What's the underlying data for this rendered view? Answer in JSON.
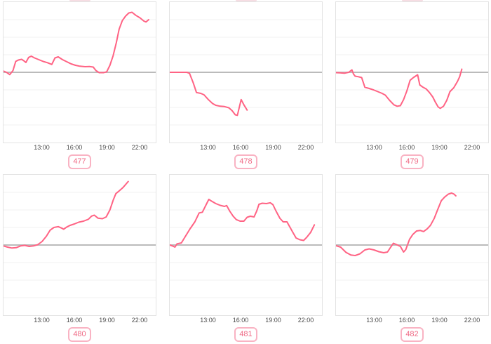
{
  "page": {
    "background": "#ffffff"
  },
  "badge": {
    "border_color": "#f9b3c3",
    "text_color": "#ef6a85"
  },
  "chart_data": {
    "type": "line",
    "title": "",
    "xlabel": "",
    "ylabel": "",
    "x_ticks": [
      "13:00",
      "16:00",
      "19:00",
      "22:00"
    ],
    "x_tick_hours": [
      13,
      16,
      19,
      22
    ],
    "x_domain_hours": [
      9.42,
      23.55
    ],
    "y_domain": [
      -4,
      4
    ],
    "grid": true,
    "zero_baseline": true,
    "legend": "none",
    "line_color": "#ff6384",
    "zero_line_color": "#bbbbbb",
    "grid_color": "#f2f2f2",
    "border_color": "#e3e3e3",
    "charts": [
      {
        "label": "477",
        "points": [
          [
            9.42,
            0.07
          ],
          [
            9.7,
            0.0
          ],
          [
            10.0,
            -0.13
          ],
          [
            10.3,
            0.1
          ],
          [
            10.55,
            0.62
          ],
          [
            10.8,
            0.7
          ],
          [
            11.1,
            0.74
          ],
          [
            11.3,
            0.66
          ],
          [
            11.5,
            0.56
          ],
          [
            11.75,
            0.85
          ],
          [
            12.0,
            0.92
          ],
          [
            12.3,
            0.82
          ],
          [
            12.7,
            0.72
          ],
          [
            13.1,
            0.62
          ],
          [
            13.5,
            0.55
          ],
          [
            13.9,
            0.45
          ],
          [
            14.2,
            0.82
          ],
          [
            14.5,
            0.88
          ],
          [
            14.9,
            0.72
          ],
          [
            15.3,
            0.6
          ],
          [
            15.7,
            0.48
          ],
          [
            16.1,
            0.4
          ],
          [
            16.5,
            0.35
          ],
          [
            17.0,
            0.32
          ],
          [
            17.4,
            0.33
          ],
          [
            17.75,
            0.3
          ],
          [
            18.0,
            0.1
          ],
          [
            18.3,
            -0.02
          ],
          [
            18.7,
            -0.02
          ],
          [
            19.0,
            0.03
          ],
          [
            19.3,
            0.4
          ],
          [
            19.6,
            0.95
          ],
          [
            19.9,
            1.7
          ],
          [
            20.15,
            2.45
          ],
          [
            20.45,
            2.95
          ],
          [
            20.75,
            3.2
          ],
          [
            21.05,
            3.38
          ],
          [
            21.35,
            3.42
          ],
          [
            21.7,
            3.25
          ],
          [
            22.1,
            3.1
          ],
          [
            22.45,
            2.92
          ],
          [
            22.65,
            2.87
          ],
          [
            22.9,
            3.0
          ]
        ]
      },
      {
        "label": "478",
        "points": [
          [
            9.42,
            0
          ],
          [
            10.0,
            0
          ],
          [
            10.5,
            0
          ],
          [
            11.0,
            0
          ],
          [
            11.25,
            -0.05
          ],
          [
            11.6,
            -0.6
          ],
          [
            11.9,
            -1.15
          ],
          [
            12.3,
            -1.2
          ],
          [
            12.6,
            -1.28
          ],
          [
            13.0,
            -1.55
          ],
          [
            13.4,
            -1.78
          ],
          [
            13.7,
            -1.88
          ],
          [
            14.1,
            -1.93
          ],
          [
            14.5,
            -1.95
          ],
          [
            14.9,
            -2.02
          ],
          [
            15.2,
            -2.18
          ],
          [
            15.5,
            -2.42
          ],
          [
            15.7,
            -2.45
          ],
          [
            16.05,
            -1.55
          ],
          [
            16.3,
            -1.85
          ],
          [
            16.6,
            -2.15
          ]
        ]
      },
      {
        "label": "479",
        "points": [
          [
            9.42,
            -0.02
          ],
          [
            9.8,
            -0.03
          ],
          [
            10.2,
            -0.05
          ],
          [
            10.6,
            0.0
          ],
          [
            10.9,
            0.14
          ],
          [
            11.05,
            -0.1
          ],
          [
            11.2,
            -0.22
          ],
          [
            11.5,
            -0.25
          ],
          [
            11.8,
            -0.3
          ],
          [
            12.1,
            -0.85
          ],
          [
            12.5,
            -0.92
          ],
          [
            12.9,
            -1.0
          ],
          [
            13.3,
            -1.1
          ],
          [
            13.7,
            -1.2
          ],
          [
            14.0,
            -1.3
          ],
          [
            14.4,
            -1.6
          ],
          [
            14.8,
            -1.85
          ],
          [
            15.1,
            -1.93
          ],
          [
            15.4,
            -1.9
          ],
          [
            15.7,
            -1.55
          ],
          [
            16.0,
            -1.05
          ],
          [
            16.3,
            -0.45
          ],
          [
            16.6,
            -0.3
          ],
          [
            16.85,
            -0.2
          ],
          [
            17.0,
            -0.14
          ],
          [
            17.2,
            -0.72
          ],
          [
            17.5,
            -0.85
          ],
          [
            17.8,
            -0.95
          ],
          [
            18.1,
            -1.15
          ],
          [
            18.4,
            -1.4
          ],
          [
            18.65,
            -1.7
          ],
          [
            18.9,
            -1.97
          ],
          [
            19.1,
            -2.05
          ],
          [
            19.4,
            -1.93
          ],
          [
            19.7,
            -1.6
          ],
          [
            20.0,
            -1.1
          ],
          [
            20.35,
            -0.88
          ],
          [
            20.7,
            -0.52
          ],
          [
            20.9,
            -0.25
          ],
          [
            21.1,
            0.18
          ]
        ]
      },
      {
        "label": "480",
        "points": [
          [
            9.42,
            -0.05
          ],
          [
            9.8,
            -0.12
          ],
          [
            10.2,
            -0.17
          ],
          [
            10.6,
            -0.15
          ],
          [
            11.0,
            -0.05
          ],
          [
            11.4,
            -0.02
          ],
          [
            11.8,
            -0.08
          ],
          [
            12.2,
            -0.05
          ],
          [
            12.6,
            0.02
          ],
          [
            13.0,
            0.2
          ],
          [
            13.4,
            0.5
          ],
          [
            13.75,
            0.85
          ],
          [
            14.1,
            1.0
          ],
          [
            14.5,
            1.05
          ],
          [
            14.8,
            0.97
          ],
          [
            15.0,
            0.9
          ],
          [
            15.3,
            1.03
          ],
          [
            15.6,
            1.12
          ],
          [
            16.0,
            1.2
          ],
          [
            16.4,
            1.3
          ],
          [
            16.85,
            1.36
          ],
          [
            17.3,
            1.47
          ],
          [
            17.6,
            1.65
          ],
          [
            17.85,
            1.7
          ],
          [
            18.2,
            1.53
          ],
          [
            18.6,
            1.5
          ],
          [
            18.95,
            1.6
          ],
          [
            19.3,
            2.0
          ],
          [
            19.6,
            2.55
          ],
          [
            19.85,
            2.93
          ],
          [
            20.15,
            3.08
          ],
          [
            20.5,
            3.27
          ],
          [
            20.8,
            3.48
          ],
          [
            21.0,
            3.62
          ]
        ]
      },
      {
        "label": "481",
        "points": [
          [
            9.42,
            0.0
          ],
          [
            9.7,
            -0.06
          ],
          [
            9.9,
            -0.12
          ],
          [
            10.1,
            0.07
          ],
          [
            10.5,
            0.12
          ],
          [
            10.9,
            0.52
          ],
          [
            11.3,
            0.92
          ],
          [
            11.75,
            1.32
          ],
          [
            12.15,
            1.83
          ],
          [
            12.45,
            1.87
          ],
          [
            12.8,
            2.3
          ],
          [
            13.05,
            2.6
          ],
          [
            13.3,
            2.5
          ],
          [
            13.7,
            2.36
          ],
          [
            14.1,
            2.26
          ],
          [
            14.5,
            2.2
          ],
          [
            14.7,
            2.25
          ],
          [
            15.0,
            1.92
          ],
          [
            15.3,
            1.65
          ],
          [
            15.6,
            1.45
          ],
          [
            15.95,
            1.36
          ],
          [
            16.3,
            1.36
          ],
          [
            16.6,
            1.58
          ],
          [
            16.9,
            1.64
          ],
          [
            17.25,
            1.6
          ],
          [
            17.5,
            1.95
          ],
          [
            17.7,
            2.32
          ],
          [
            18.0,
            2.38
          ],
          [
            18.4,
            2.36
          ],
          [
            18.75,
            2.41
          ],
          [
            19.0,
            2.3
          ],
          [
            19.3,
            1.92
          ],
          [
            19.65,
            1.52
          ],
          [
            19.95,
            1.32
          ],
          [
            20.3,
            1.32
          ],
          [
            20.55,
            1.05
          ],
          [
            20.85,
            0.72
          ],
          [
            21.15,
            0.4
          ],
          [
            21.5,
            0.3
          ],
          [
            21.85,
            0.26
          ],
          [
            22.15,
            0.45
          ],
          [
            22.5,
            0.72
          ],
          [
            22.85,
            1.15
          ]
        ]
      },
      {
        "label": "482",
        "points": [
          [
            9.42,
            -0.04
          ],
          [
            9.85,
            -0.12
          ],
          [
            10.35,
            -0.42
          ],
          [
            10.8,
            -0.57
          ],
          [
            11.2,
            -0.6
          ],
          [
            11.65,
            -0.5
          ],
          [
            12.1,
            -0.28
          ],
          [
            12.5,
            -0.22
          ],
          [
            12.95,
            -0.28
          ],
          [
            13.4,
            -0.38
          ],
          [
            13.85,
            -0.44
          ],
          [
            14.2,
            -0.4
          ],
          [
            14.5,
            -0.12
          ],
          [
            14.75,
            0.1
          ],
          [
            15.05,
            0.02
          ],
          [
            15.4,
            -0.08
          ],
          [
            15.7,
            -0.4
          ],
          [
            15.9,
            -0.26
          ],
          [
            16.25,
            0.33
          ],
          [
            16.55,
            0.6
          ],
          [
            16.9,
            0.8
          ],
          [
            17.25,
            0.83
          ],
          [
            17.55,
            0.77
          ],
          [
            17.9,
            0.93
          ],
          [
            18.2,
            1.13
          ],
          [
            18.55,
            1.53
          ],
          [
            18.85,
            2.0
          ],
          [
            19.2,
            2.53
          ],
          [
            19.5,
            2.73
          ],
          [
            19.85,
            2.9
          ],
          [
            20.15,
            2.96
          ],
          [
            20.35,
            2.91
          ],
          [
            20.55,
            2.8
          ]
        ]
      }
    ]
  }
}
